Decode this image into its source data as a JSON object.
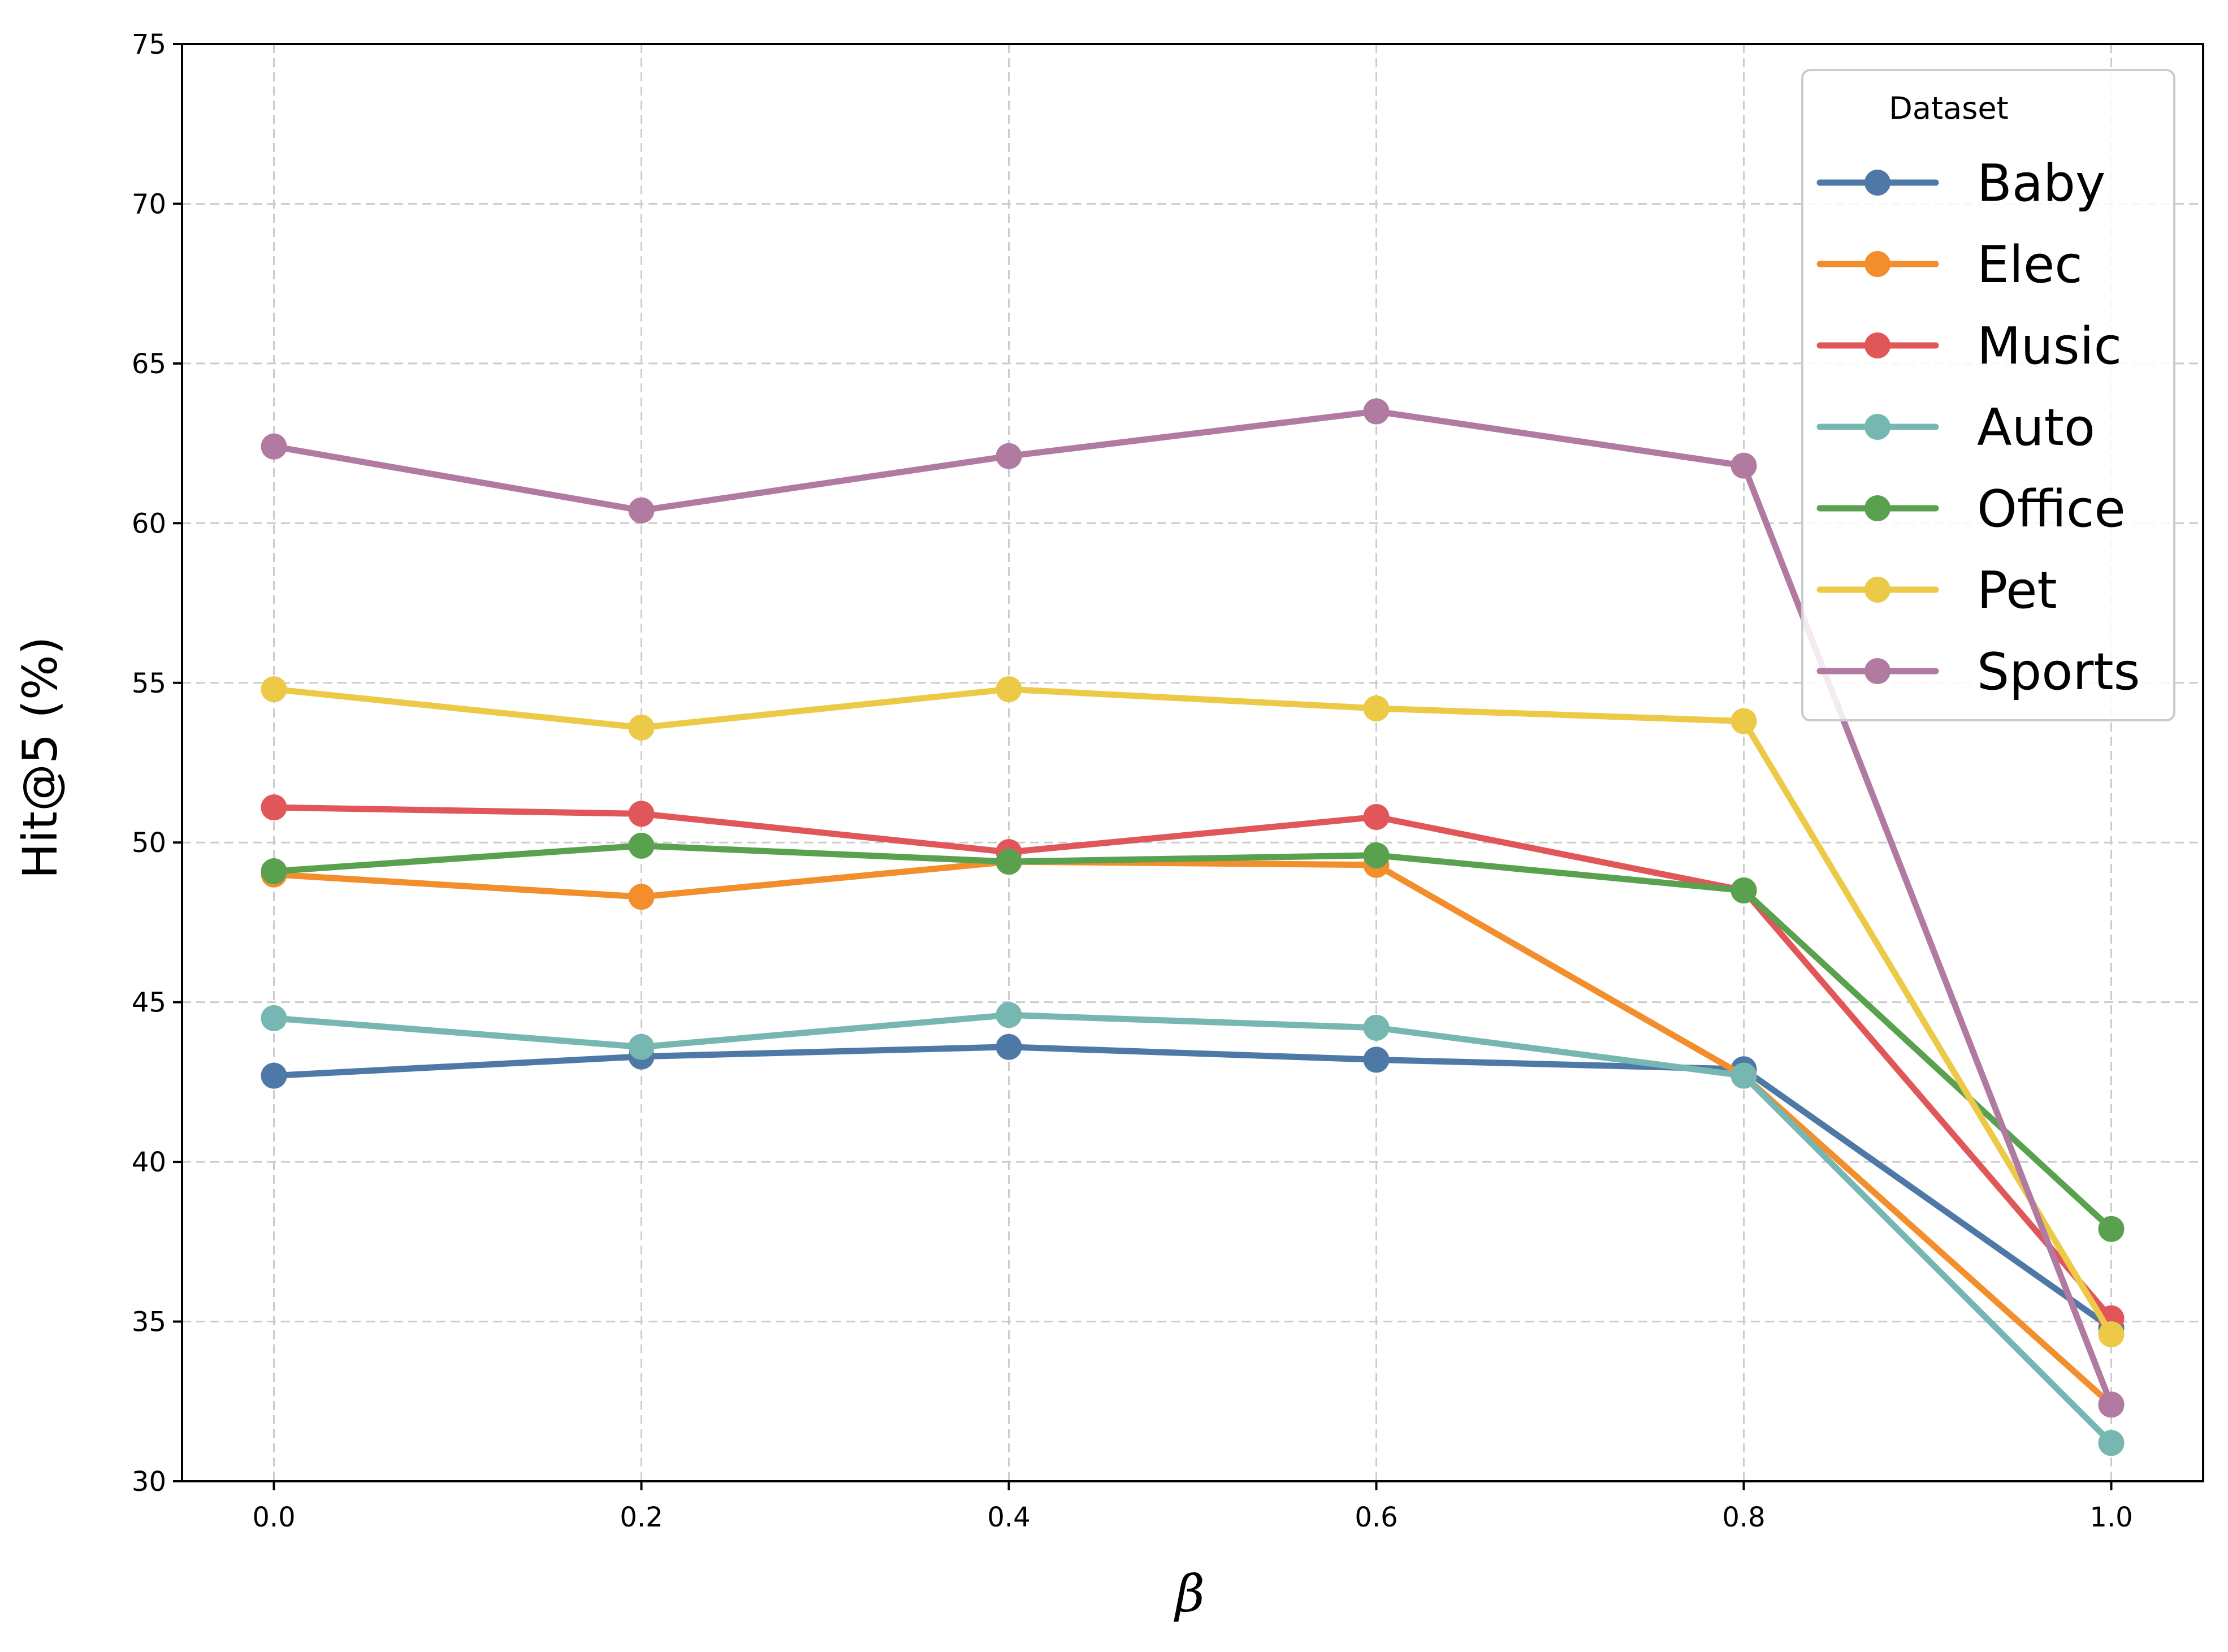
{
  "chart_data": {
    "type": "line",
    "title": "",
    "xlabel": "β",
    "ylabel": "Hit@5 (%)",
    "x": [
      0.0,
      0.2,
      0.4,
      0.6,
      0.8,
      1.0
    ],
    "x_tick_labels": [
      "0.0",
      "0.2",
      "0.4",
      "0.6",
      "0.8",
      "1.0"
    ],
    "xlim": [
      -0.05,
      1.05
    ],
    "ylim": [
      30,
      75
    ],
    "y_ticks": [
      30,
      35,
      40,
      45,
      50,
      55,
      60,
      65,
      70,
      75
    ],
    "y_tick_labels": [
      "30",
      "35",
      "40",
      "45",
      "50",
      "55",
      "60",
      "65",
      "70",
      "75"
    ],
    "grid": true,
    "legend": {
      "title": "Dataset",
      "placement": "top-right"
    },
    "series": [
      {
        "name": "Baby",
        "color": "#4e79a7",
        "values": [
          42.7,
          43.3,
          43.6,
          43.2,
          42.9,
          34.8
        ]
      },
      {
        "name": "Elec",
        "color": "#f28e2b",
        "values": [
          49.0,
          48.3,
          49.4,
          49.3,
          42.7,
          32.4
        ]
      },
      {
        "name": "Music",
        "color": "#e15759",
        "values": [
          51.1,
          50.9,
          49.7,
          50.8,
          48.5,
          35.1
        ]
      },
      {
        "name": "Auto",
        "color": "#76b7b2",
        "values": [
          44.5,
          43.6,
          44.6,
          44.2,
          42.7,
          31.2
        ]
      },
      {
        "name": "Office",
        "color": "#59a14f",
        "values": [
          49.1,
          49.9,
          49.4,
          49.6,
          48.5,
          37.9
        ]
      },
      {
        "name": "Pet",
        "color": "#edc948",
        "values": [
          54.8,
          53.6,
          54.8,
          54.2,
          53.8,
          34.6
        ]
      },
      {
        "name": "Sports",
        "color": "#b07aa1",
        "values": [
          62.4,
          60.4,
          62.1,
          63.5,
          61.8,
          32.4
        ]
      }
    ]
  }
}
